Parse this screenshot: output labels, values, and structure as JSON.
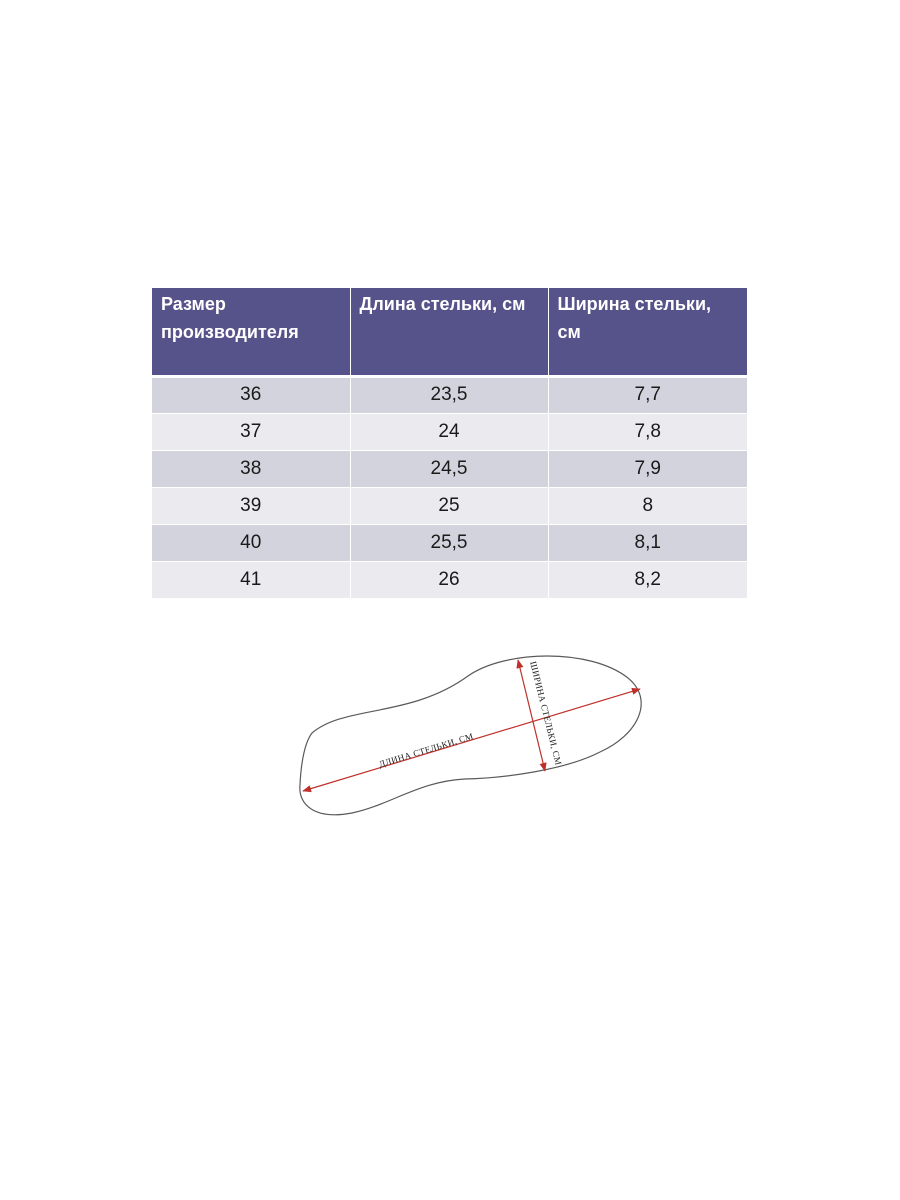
{
  "table": {
    "headers": [
      "Размер производителя",
      "Длина стельки, см",
      "Ширина стельки, см"
    ],
    "rows": [
      [
        "36",
        "23,5",
        "7,7"
      ],
      [
        "37",
        "24",
        "7,8"
      ],
      [
        "38",
        "24,5",
        "7,9"
      ],
      [
        "39",
        "25",
        "8"
      ],
      [
        "40",
        "25,5",
        "8,1"
      ],
      [
        "41",
        "26",
        "8,2"
      ]
    ]
  },
  "diagram": {
    "length_label": "ДЛИНА СТЕЛЬКИ, СМ",
    "width_label": "ШИРИНА СТЕЛЬКИ, СМ",
    "arrow_color": "#c0302a",
    "outline_color": "#5a5a5a"
  },
  "colors": {
    "header_bg": "#56528a",
    "row_dark": "#d3d3de",
    "row_light": "#ebebef"
  }
}
